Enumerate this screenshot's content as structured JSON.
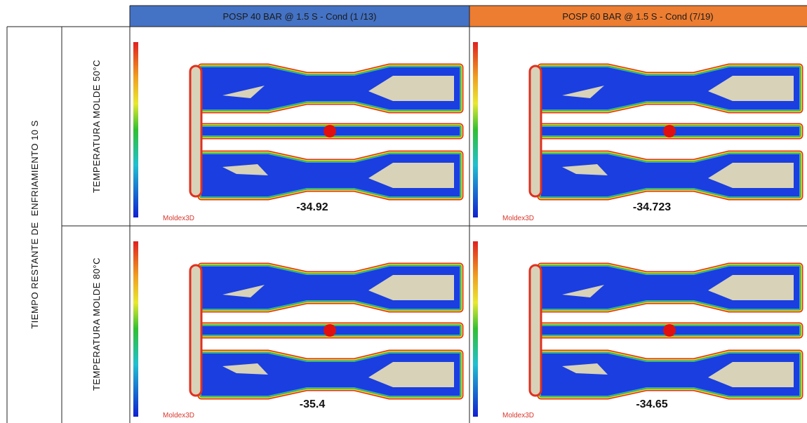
{
  "header": {
    "columns": [
      "POSP 40 BAR @ 1.5 S - Cond (1 /13)",
      "POSP 60 BAR @ 1.5 S - Cond (7/19)"
    ]
  },
  "group_label": "TIEMPO RESTANTE DE  ENFRIAMIENTO 10 S",
  "rows": [
    {
      "label": "TEMPERATURA MOLDE 50°C",
      "cells": [
        {
          "value": "-34.92",
          "logo": "Moldex3D"
        },
        {
          "value": "-34.723",
          "logo": "Moldex3D"
        }
      ]
    },
    {
      "label": "TEMPERATURA MOLDE 80°C",
      "cells": [
        {
          "value": "-35.4",
          "logo": "Moldex3D"
        },
        {
          "value": "-34.65",
          "logo": "Moldex3D"
        }
      ]
    }
  ]
}
